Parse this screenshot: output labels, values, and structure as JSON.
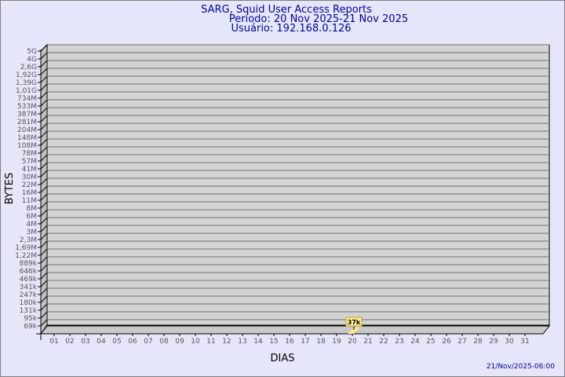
{
  "chart_data": {
    "type": "bar",
    "title": "SARG, Squid User Access Reports",
    "subtitle_lines": [
      "Período: 20 Nov 2025-21 Nov 2025",
      "Usuário: 192.168.0.126"
    ],
    "xlabel": "DIAS",
    "ylabel": "BYTES",
    "y_scale": "log",
    "y_tick_labels": [
      "5G",
      "4G",
      "2,6G",
      "1,92G",
      "1,39G",
      "1,01G",
      "734M",
      "533M",
      "387M",
      "281M",
      "204M",
      "148M",
      "108M",
      "78M",
      "57M",
      "41M",
      "30M",
      "22M",
      "16M",
      "11M",
      "8M",
      "6M",
      "4M",
      "3M",
      "2,3M",
      "1,69M",
      "1,22M",
      "889k",
      "646k",
      "469k",
      "341k",
      "247k",
      "180k",
      "131k",
      "95k",
      "69k"
    ],
    "categories": [
      "01",
      "02",
      "03",
      "04",
      "05",
      "06",
      "07",
      "08",
      "09",
      "10",
      "11",
      "12",
      "13",
      "14",
      "15",
      "16",
      "17",
      "18",
      "19",
      "20",
      "21",
      "22",
      "23",
      "24",
      "25",
      "26",
      "27",
      "28",
      "29",
      "30",
      "31"
    ],
    "bars": [
      {
        "day": "20",
        "value": 37000,
        "label": "37k"
      }
    ],
    "grid": true,
    "colors": {
      "background": "#e6e6fa",
      "plot": "#d3d3d3",
      "bar": "#ffe88a",
      "title": "#00009c"
    }
  },
  "footer": {
    "timestamp": "21/Nov/2025-06:00"
  }
}
